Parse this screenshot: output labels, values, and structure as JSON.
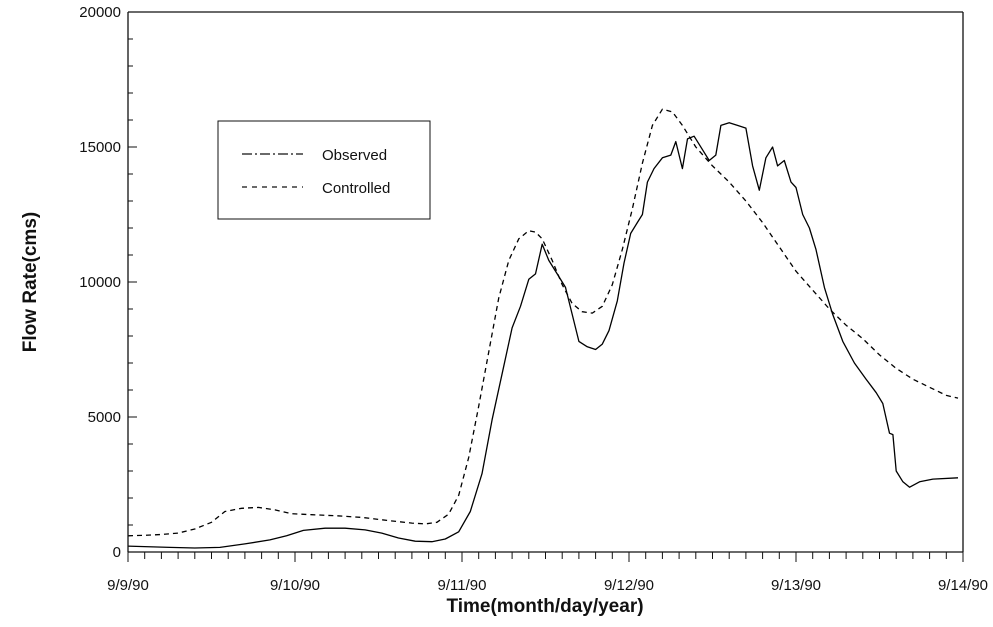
{
  "chart_data": {
    "type": "line",
    "title": "",
    "xlabel": "Time(month/day/year)",
    "ylabel": "Flow Rate(cms)",
    "xlim": [
      0,
      5
    ],
    "ylim": [
      0,
      20000
    ],
    "x_tick_labels": [
      {
        "x": 0,
        "label": "9/9/90"
      },
      {
        "x": 1,
        "label": "9/10/90"
      },
      {
        "x": 2,
        "label": "9/11/90"
      },
      {
        "x": 3,
        "label": "9/12/90"
      },
      {
        "x": 4,
        "label": "9/13/90"
      },
      {
        "x": 5,
        "label": "9/14/90"
      }
    ],
    "y_ticks": [
      0,
      5000,
      10000,
      15000,
      20000
    ],
    "y_tick_labels": [
      "0",
      "5000",
      "10000",
      "15000",
      "20000"
    ],
    "legend": {
      "position": "upper-left"
    },
    "series": [
      {
        "name": "Observed",
        "style": "solid",
        "color": "#000000",
        "points": [
          [
            0.0,
            220
          ],
          [
            0.1,
            200
          ],
          [
            0.25,
            170
          ],
          [
            0.4,
            150
          ],
          [
            0.55,
            170
          ],
          [
            0.7,
            300
          ],
          [
            0.85,
            450
          ],
          [
            0.95,
            600
          ],
          [
            1.05,
            800
          ],
          [
            1.18,
            880
          ],
          [
            1.3,
            880
          ],
          [
            1.42,
            820
          ],
          [
            1.52,
            700
          ],
          [
            1.62,
            520
          ],
          [
            1.72,
            400
          ],
          [
            1.82,
            380
          ],
          [
            1.9,
            480
          ],
          [
            1.98,
            750
          ],
          [
            2.05,
            1500
          ],
          [
            2.12,
            2900
          ],
          [
            2.18,
            4900
          ],
          [
            2.24,
            6600
          ],
          [
            2.3,
            8300
          ],
          [
            2.35,
            9100
          ],
          [
            2.4,
            10100
          ],
          [
            2.44,
            10300
          ],
          [
            2.48,
            11400
          ],
          [
            2.52,
            10800
          ],
          [
            2.58,
            10200
          ],
          [
            2.62,
            9800
          ],
          [
            2.66,
            8800
          ],
          [
            2.7,
            7800
          ],
          [
            2.75,
            7600
          ],
          [
            2.8,
            7500
          ],
          [
            2.84,
            7700
          ],
          [
            2.88,
            8200
          ],
          [
            2.93,
            9300
          ],
          [
            2.97,
            10700
          ],
          [
            3.01,
            11800
          ],
          [
            3.05,
            12200
          ],
          [
            3.08,
            12500
          ],
          [
            3.11,
            13700
          ],
          [
            3.15,
            14200
          ],
          [
            3.2,
            14600
          ],
          [
            3.25,
            14700
          ],
          [
            3.28,
            15200
          ],
          [
            3.32,
            14200
          ],
          [
            3.35,
            15300
          ],
          [
            3.39,
            15400
          ],
          [
            3.44,
            14900
          ],
          [
            3.48,
            14500
          ],
          [
            3.52,
            14700
          ],
          [
            3.55,
            15800
          ],
          [
            3.6,
            15900
          ],
          [
            3.65,
            15800
          ],
          [
            3.7,
            15700
          ],
          [
            3.74,
            14300
          ],
          [
            3.78,
            13400
          ],
          [
            3.82,
            14600
          ],
          [
            3.86,
            15000
          ],
          [
            3.89,
            14300
          ],
          [
            3.93,
            14500
          ],
          [
            3.97,
            13700
          ],
          [
            4.0,
            13500
          ],
          [
            4.04,
            12500
          ],
          [
            4.08,
            12000
          ],
          [
            4.12,
            11200
          ],
          [
            4.17,
            9800
          ],
          [
            4.22,
            8800
          ],
          [
            4.28,
            7800
          ],
          [
            4.35,
            7000
          ],
          [
            4.42,
            6400
          ],
          [
            4.48,
            5900
          ],
          [
            4.52,
            5500
          ],
          [
            4.56,
            4400
          ],
          [
            4.58,
            4350
          ],
          [
            4.6,
            3000
          ],
          [
            4.64,
            2600
          ],
          [
            4.68,
            2400
          ],
          [
            4.74,
            2600
          ],
          [
            4.82,
            2700
          ],
          [
            4.97,
            2750
          ]
        ]
      },
      {
        "name": "Controlled",
        "style": "dashed",
        "color": "#000000",
        "points": [
          [
            0.0,
            600
          ],
          [
            0.1,
            620
          ],
          [
            0.2,
            650
          ],
          [
            0.3,
            700
          ],
          [
            0.4,
            850
          ],
          [
            0.5,
            1100
          ],
          [
            0.58,
            1500
          ],
          [
            0.68,
            1620
          ],
          [
            0.78,
            1650
          ],
          [
            0.88,
            1560
          ],
          [
            0.98,
            1420
          ],
          [
            1.1,
            1380
          ],
          [
            1.25,
            1340
          ],
          [
            1.4,
            1280
          ],
          [
            1.55,
            1170
          ],
          [
            1.7,
            1070
          ],
          [
            1.78,
            1040
          ],
          [
            1.85,
            1100
          ],
          [
            1.92,
            1400
          ],
          [
            1.98,
            2100
          ],
          [
            2.04,
            3500
          ],
          [
            2.1,
            5400
          ],
          [
            2.16,
            7400
          ],
          [
            2.22,
            9400
          ],
          [
            2.28,
            10800
          ],
          [
            2.34,
            11600
          ],
          [
            2.4,
            11900
          ],
          [
            2.44,
            11850
          ],
          [
            2.48,
            11600
          ],
          [
            2.54,
            10800
          ],
          [
            2.6,
            9900
          ],
          [
            2.66,
            9200
          ],
          [
            2.72,
            8900
          ],
          [
            2.78,
            8850
          ],
          [
            2.84,
            9100
          ],
          [
            2.9,
            9900
          ],
          [
            2.96,
            11200
          ],
          [
            3.02,
            12700
          ],
          [
            3.08,
            14400
          ],
          [
            3.14,
            15800
          ],
          [
            3.2,
            16400
          ],
          [
            3.26,
            16300
          ],
          [
            3.32,
            15800
          ],
          [
            3.4,
            15000
          ],
          [
            3.5,
            14300
          ],
          [
            3.6,
            13700
          ],
          [
            3.7,
            13000
          ],
          [
            3.8,
            12200
          ],
          [
            3.9,
            11300
          ],
          [
            4.0,
            10400
          ],
          [
            4.1,
            9700
          ],
          [
            4.2,
            9000
          ],
          [
            4.3,
            8400
          ],
          [
            4.4,
            7900
          ],
          [
            4.5,
            7300
          ],
          [
            4.6,
            6800
          ],
          [
            4.7,
            6400
          ],
          [
            4.8,
            6100
          ],
          [
            4.9,
            5800
          ],
          [
            4.97,
            5700
          ]
        ]
      }
    ]
  }
}
